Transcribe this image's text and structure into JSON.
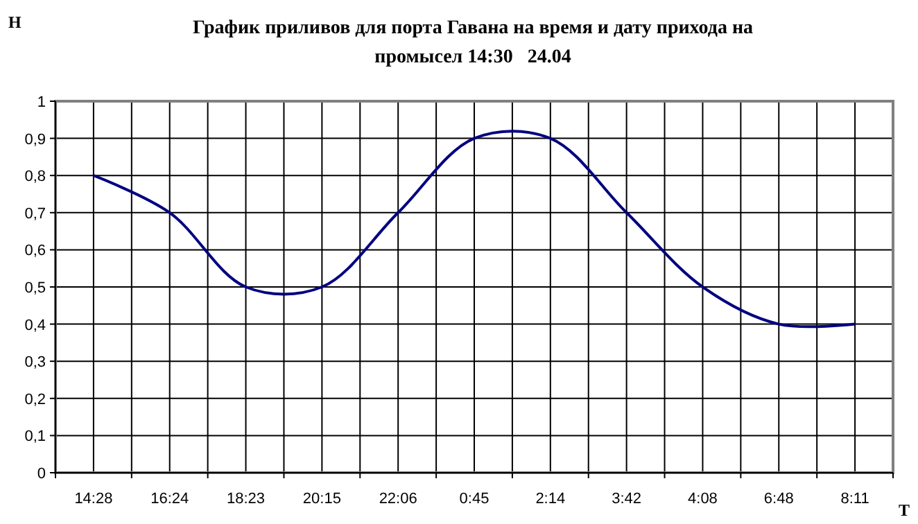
{
  "chart_data": {
    "type": "line",
    "title": "График приливов для порта Гавана на время и дату прихода на промысел 14:30   24.04",
    "xlabel": "Т",
    "ylabel": "Н",
    "categories": [
      "14:28",
      "16:24",
      "18:23",
      "20:15",
      "22:06",
      "0:45",
      "2:14",
      "3:42",
      "4:08",
      "6:48",
      "8:11"
    ],
    "series": [
      {
        "color": "#000080",
        "values": [
          0.8,
          0.7,
          0.5,
          0.5,
          0.7,
          0.9,
          0.9,
          0.7,
          0.5,
          0.4,
          0.4
        ]
      }
    ],
    "ylim": [
      0,
      1
    ],
    "yticks": [
      0,
      {
        "value": 0.1,
        "label": "0,1"
      },
      {
        "value": 0.2,
        "label": "0,2"
      },
      {
        "value": 0.3,
        "label": "0,3"
      },
      {
        "value": 0.4,
        "label": "0,4"
      },
      {
        "value": 0.5,
        "label": "0,5"
      },
      {
        "value": 0.6,
        "label": "0,6"
      },
      {
        "value": 0.7,
        "label": "0,7"
      },
      {
        "value": 0.8,
        "label": "0,8"
      },
      {
        "value": 0.9,
        "label": "0,9"
      },
      1
    ],
    "grid": true,
    "marker": "none",
    "line_style": "solid"
  }
}
